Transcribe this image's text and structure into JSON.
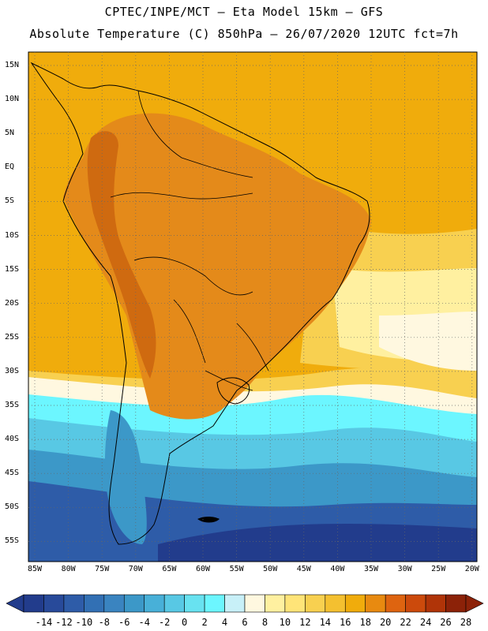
{
  "header": {
    "line1": "CPTEC/INPE/MCT –  Eta Model 15km – GFS",
    "line2": "Absolute Temperature (C) 850hPa – 26/07/2020 12UTC fct=7h"
  },
  "map": {
    "lat_labels": [
      "15N",
      "10N",
      "5N",
      "EQ",
      "5S",
      "10S",
      "15S",
      "20S",
      "25S",
      "30S",
      "35S",
      "40S",
      "45S",
      "50S",
      "55S"
    ],
    "lon_labels": [
      "85W",
      "80W",
      "75W",
      "70W",
      "65W",
      "60W",
      "55W",
      "50W",
      "45W",
      "40W",
      "35W",
      "30W",
      "25W",
      "20W"
    ],
    "colors": {
      "ocean_warm": "#f0b400",
      "land_hot": "#e48a1a",
      "andes_hot": "#cf6a10",
      "cold_deep": "#1f3f8f",
      "cold_mid": "#2f7fbf",
      "cold_light": "#4fd0e8",
      "cyan": "#66f0ff"
    }
  },
  "colorbar": {
    "labels": [
      "-14",
      "-12",
      "-10",
      "-8",
      "-6",
      "-4",
      "-2",
      "0",
      "2",
      "4",
      "6",
      "8",
      "10",
      "12",
      "14",
      "16",
      "18",
      "20",
      "22",
      "24",
      "26",
      "28"
    ],
    "colors": [
      "#223c8c",
      "#284a9a",
      "#2e5ca8",
      "#3270b4",
      "#3a84c0",
      "#3c98c8",
      "#48b0d8",
      "#58c8e4",
      "#68e2f0",
      "#6cf6ff",
      "#c8f0f8",
      "#fff8e0",
      "#fff0a0",
      "#ffe478",
      "#f8d050",
      "#f4c030",
      "#f0ac0c",
      "#e88a10",
      "#de6410",
      "#cc4a0c",
      "#b03408",
      "#8c2208"
    ]
  }
}
